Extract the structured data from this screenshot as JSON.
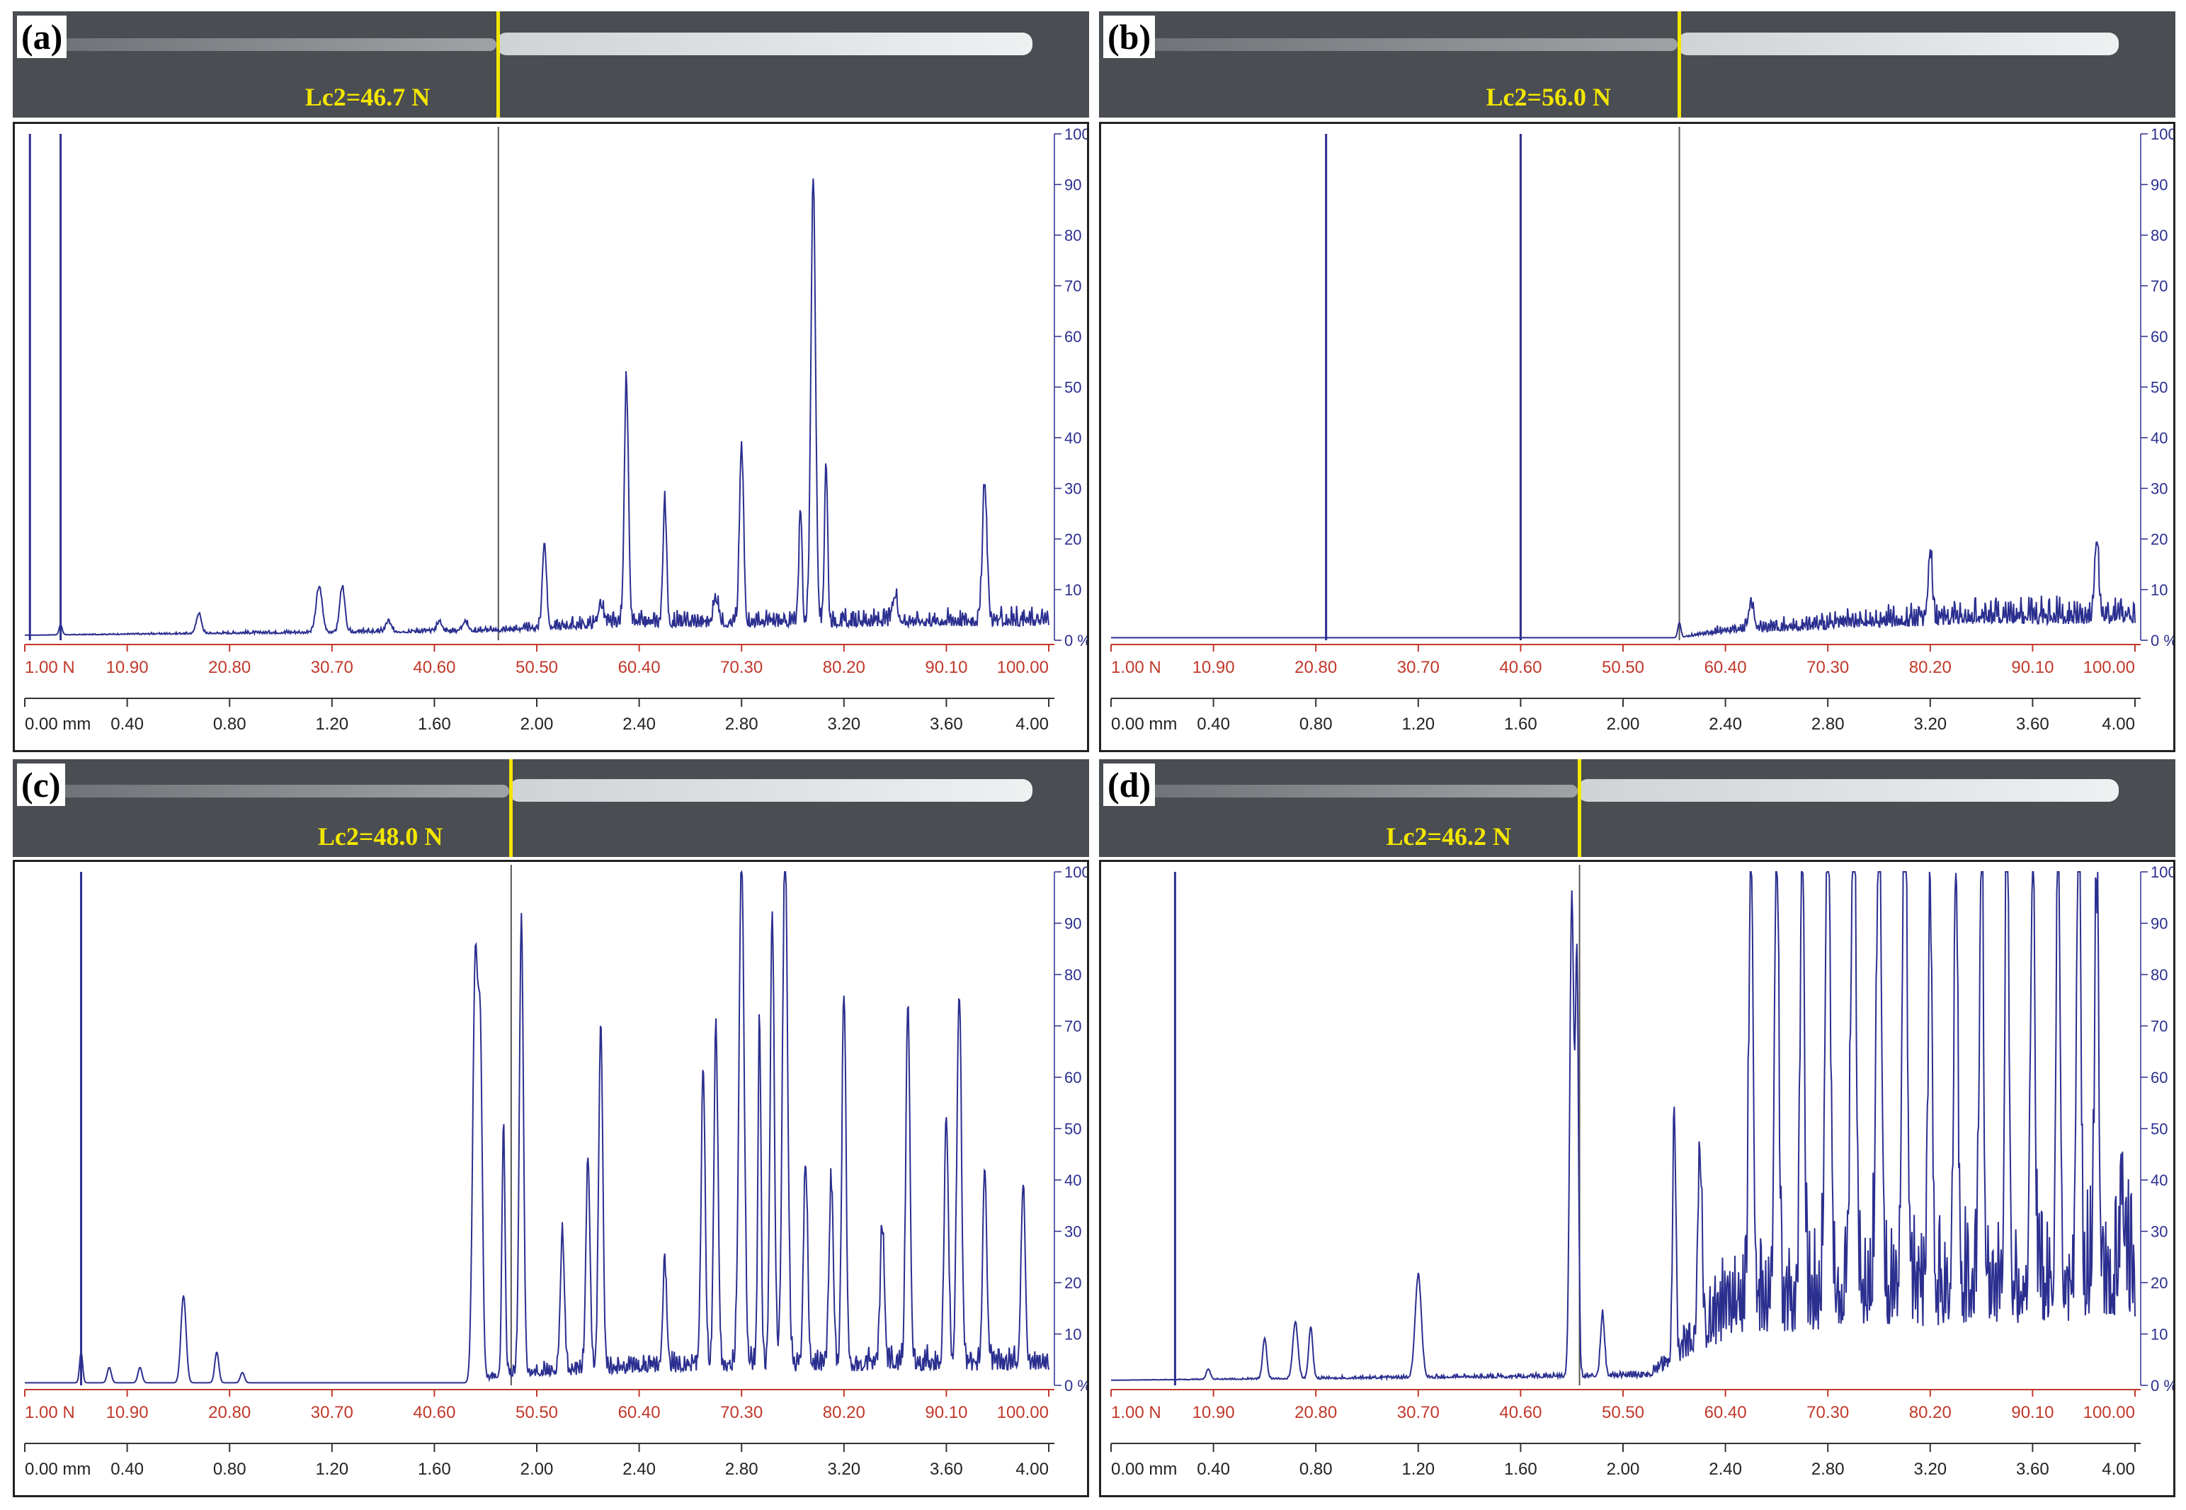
{
  "colors": {
    "signal": "#2b2f8f",
    "force_axis": "#c0392b",
    "lc2": "#f3e600",
    "marker": "#555555"
  },
  "force_ticks": [
    "1.00 N",
    "10.90",
    "20.80",
    "30.70",
    "40.60",
    "50.50",
    "60.40",
    "70.30",
    "80.20",
    "90.10",
    "100.00"
  ],
  "distance_ticks": [
    "0.00 mm",
    "0.40",
    "0.80",
    "1.20",
    "1.60",
    "2.00",
    "2.40",
    "2.80",
    "3.20",
    "3.60",
    "4.00"
  ],
  "percent_ticks": [
    "0 %",
    "10",
    "20",
    "30",
    "40",
    "50",
    "60",
    "70",
    "80",
    "90",
    "100"
  ],
  "panels": [
    {
      "letter": "(a)",
      "lc2_label": "Lc2=46.7 N",
      "chart_data": {
        "type": "line",
        "xlabel": "",
        "ylabel": "",
        "x_unit": "mm",
        "xlim": [
          0,
          4
        ],
        "ylim": [
          0,
          100
        ],
        "lc2_x": 1.85,
        "marker_lines": [
          {
            "x": 0.02,
            "h": 100
          },
          {
            "x": 0.14,
            "h": 100
          }
        ],
        "baseline": 1,
        "base_noise": [
          [
            0,
            0
          ],
          [
            1.85,
            2
          ],
          [
            2.3,
            5
          ],
          [
            4.0,
            6
          ]
        ],
        "peaks": [
          [
            0.14,
            2,
            0.006
          ],
          [
            0.68,
            4,
            0.01
          ],
          [
            1.15,
            9,
            0.012
          ],
          [
            1.24,
            9,
            0.01
          ],
          [
            1.42,
            2,
            0.01
          ],
          [
            1.62,
            2,
            0.01
          ],
          [
            1.72,
            2,
            0.01
          ],
          [
            2.03,
            17,
            0.008
          ],
          [
            2.25,
            4,
            0.01
          ],
          [
            2.35,
            48,
            0.008
          ],
          [
            2.5,
            24,
            0.007
          ],
          [
            2.7,
            5,
            0.01
          ],
          [
            2.8,
            35,
            0.008
          ],
          [
            3.03,
            23,
            0.006
          ],
          [
            3.08,
            88,
            0.009
          ],
          [
            3.13,
            32,
            0.006
          ],
          [
            3.4,
            5,
            0.01
          ],
          [
            3.75,
            27,
            0.009
          ]
        ]
      }
    },
    {
      "letter": "(b)",
      "lc2_label": "Lc2=56.0 N",
      "chart_data": {
        "type": "line",
        "xlabel": "",
        "ylabel": "",
        "x_unit": "mm",
        "xlim": [
          0,
          4
        ],
        "ylim": [
          0,
          100
        ],
        "lc2_x": 2.22,
        "marker_lines": [
          {
            "x": 0.84,
            "h": 100
          },
          {
            "x": 1.6,
            "h": 100
          }
        ],
        "baseline": 0.5,
        "base_noise": [
          [
            0,
            0
          ],
          [
            2.22,
            0
          ],
          [
            2.4,
            3
          ],
          [
            2.9,
            6
          ],
          [
            3.4,
            9
          ],
          [
            4.0,
            9
          ]
        ],
        "peaks": [
          [
            2.22,
            3,
            0.006
          ],
          [
            2.5,
            5,
            0.01
          ],
          [
            3.2,
            14,
            0.008
          ],
          [
            3.85,
            16,
            0.008
          ]
        ]
      }
    },
    {
      "letter": "(c)",
      "lc2_label": "Lc2=48.0 N",
      "chart_data": {
        "type": "line",
        "xlabel": "",
        "ylabel": "",
        "x_unit": "mm",
        "xlim": [
          0,
          4
        ],
        "ylim": [
          0,
          100
        ],
        "lc2_x": 1.9,
        "marker_lines": [
          {
            "x": 0.22,
            "h": 100
          }
        ],
        "baseline": 0.5,
        "base_noise": [
          [
            0,
            0
          ],
          [
            1.72,
            0
          ],
          [
            1.9,
            4
          ],
          [
            2.6,
            7
          ],
          [
            4.0,
            8
          ]
        ],
        "peaks": [
          [
            0.22,
            6,
            0.006
          ],
          [
            0.33,
            3,
            0.008
          ],
          [
            0.45,
            3,
            0.008
          ],
          [
            0.62,
            17,
            0.01
          ],
          [
            0.75,
            6,
            0.008
          ],
          [
            0.85,
            2,
            0.008
          ],
          [
            1.76,
            82,
            0.01
          ],
          [
            1.78,
            60,
            0.008
          ],
          [
            1.87,
            49,
            0.006
          ],
          [
            1.94,
            88,
            0.008
          ],
          [
            2.1,
            27,
            0.008
          ],
          [
            2.2,
            41,
            0.008
          ],
          [
            2.25,
            68,
            0.008
          ],
          [
            2.5,
            20,
            0.008
          ],
          [
            2.65,
            57,
            0.008
          ],
          [
            2.7,
            66,
            0.008
          ],
          [
            2.8,
            100,
            0.01
          ],
          [
            2.87,
            68,
            0.006
          ],
          [
            2.92,
            88,
            0.008
          ],
          [
            2.97,
            100,
            0.01
          ],
          [
            3.05,
            40,
            0.008
          ],
          [
            3.15,
            36,
            0.008
          ],
          [
            3.2,
            73,
            0.008
          ],
          [
            3.35,
            27,
            0.008
          ],
          [
            3.45,
            71,
            0.008
          ],
          [
            3.6,
            49,
            0.008
          ],
          [
            3.65,
            72,
            0.009
          ],
          [
            3.75,
            39,
            0.008
          ],
          [
            3.9,
            36,
            0.008
          ]
        ]
      }
    },
    {
      "letter": "(d)",
      "lc2_label": "Lc2=46.2 N",
      "chart_data": {
        "type": "line",
        "xlabel": "",
        "ylabel": "",
        "x_unit": "mm",
        "xlim": [
          0,
          4
        ],
        "ylim": [
          0,
          100
        ],
        "lc2_x": 1.83,
        "marker_lines": [
          {
            "x": 0.25,
            "h": 100
          }
        ],
        "baseline": 1,
        "base_noise": [
          [
            0,
            0
          ],
          [
            2.1,
            2
          ],
          [
            2.45,
            30
          ],
          [
            4.0,
            40
          ]
        ],
        "peaks": [
          [
            0.38,
            2,
            0.008
          ],
          [
            0.6,
            8,
            0.008
          ],
          [
            0.72,
            11,
            0.01
          ],
          [
            0.78,
            10,
            0.008
          ],
          [
            1.2,
            20,
            0.012
          ],
          [
            1.8,
            94,
            0.008
          ],
          [
            1.82,
            80,
            0.006
          ],
          [
            1.92,
            12,
            0.008
          ],
          [
            2.2,
            49,
            0.006
          ],
          [
            2.3,
            36,
            0.008
          ],
          [
            2.5,
            94,
            0.008
          ],
          [
            2.6,
            94,
            0.008
          ],
          [
            2.7,
            95,
            0.008
          ],
          [
            2.8,
            100,
            0.01
          ],
          [
            2.9,
            100,
            0.01
          ],
          [
            3.0,
            100,
            0.01
          ],
          [
            3.1,
            100,
            0.01
          ],
          [
            3.2,
            80,
            0.008
          ],
          [
            3.3,
            85,
            0.008
          ],
          [
            3.4,
            90,
            0.008
          ],
          [
            3.5,
            93,
            0.008
          ],
          [
            3.6,
            88,
            0.008
          ],
          [
            3.7,
            92,
            0.008
          ],
          [
            3.78,
            100,
            0.008
          ],
          [
            3.85,
            80,
            0.008
          ],
          [
            3.95,
            20,
            0.008
          ]
        ]
      }
    }
  ]
}
